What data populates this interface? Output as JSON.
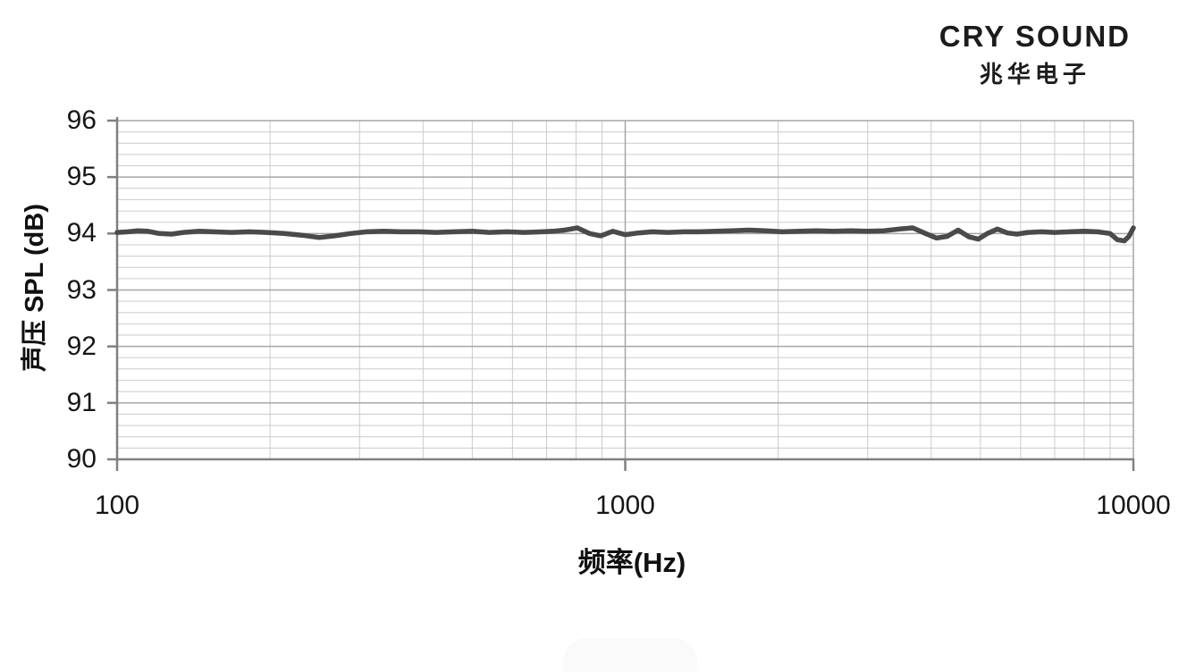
{
  "logo": {
    "brand": "CRY SOUND",
    "brand_cn": "兆华电子"
  },
  "colors": {
    "series": "#4a4a4a",
    "grid_major": "#a6a6a6",
    "grid_minor": "#cbcbcb",
    "axis": "#808080",
    "text": "#161616"
  },
  "chart_data": {
    "type": "line",
    "title": "",
    "xlabel": "频率(Hz)",
    "ylabel": "声压 SPL (dB)",
    "x_scale": "log",
    "xlim": [
      100,
      10000
    ],
    "ylim": [
      90,
      96
    ],
    "x_ticks": [
      100,
      1000,
      10000
    ],
    "y_ticks": [
      90,
      91,
      92,
      93,
      94,
      95,
      96
    ],
    "y_minor_step": 0.2,
    "grid": true,
    "legend": "none",
    "series": [
      {
        "name": "SPL",
        "color": "#4a4a4a",
        "points": [
          [
            100,
            94.02
          ],
          [
            105,
            94.03
          ],
          [
            110,
            94.05
          ],
          [
            115,
            94.04
          ],
          [
            121,
            94.0
          ],
          [
            128,
            93.99
          ],
          [
            135,
            94.02
          ],
          [
            145,
            94.04
          ],
          [
            155,
            94.03
          ],
          [
            168,
            94.02
          ],
          [
            182,
            94.03
          ],
          [
            197,
            94.02
          ],
          [
            213,
            94.0
          ],
          [
            231,
            93.97
          ],
          [
            250,
            93.93
          ],
          [
            268,
            93.96
          ],
          [
            288,
            94.0
          ],
          [
            310,
            94.03
          ],
          [
            335,
            94.04
          ],
          [
            362,
            94.03
          ],
          [
            392,
            94.03
          ],
          [
            424,
            94.02
          ],
          [
            460,
            94.03
          ],
          [
            500,
            94.04
          ],
          [
            540,
            94.02
          ],
          [
            585,
            94.03
          ],
          [
            633,
            94.02
          ],
          [
            685,
            94.03
          ],
          [
            720,
            94.04
          ],
          [
            760,
            94.06
          ],
          [
            805,
            94.1
          ],
          [
            850,
            94.0
          ],
          [
            895,
            93.96
          ],
          [
            945,
            94.04
          ],
          [
            1000,
            93.98
          ],
          [
            1060,
            94.01
          ],
          [
            1130,
            94.03
          ],
          [
            1210,
            94.02
          ],
          [
            1300,
            94.03
          ],
          [
            1400,
            94.03
          ],
          [
            1510,
            94.04
          ],
          [
            1620,
            94.05
          ],
          [
            1750,
            94.06
          ],
          [
            1890,
            94.05
          ],
          [
            2040,
            94.03
          ],
          [
            2200,
            94.04
          ],
          [
            2380,
            94.05
          ],
          [
            2570,
            94.04
          ],
          [
            2780,
            94.05
          ],
          [
            3000,
            94.04
          ],
          [
            3230,
            94.05
          ],
          [
            3460,
            94.08
          ],
          [
            3680,
            94.1
          ],
          [
            3900,
            94.0
          ],
          [
            4100,
            93.92
          ],
          [
            4300,
            93.95
          ],
          [
            4520,
            94.06
          ],
          [
            4750,
            93.94
          ],
          [
            4950,
            93.9
          ],
          [
            5160,
            94.0
          ],
          [
            5400,
            94.08
          ],
          [
            5650,
            94.01
          ],
          [
            5900,
            93.99
          ],
          [
            6200,
            94.02
          ],
          [
            6600,
            94.03
          ],
          [
            7000,
            94.02
          ],
          [
            7500,
            94.03
          ],
          [
            8000,
            94.04
          ],
          [
            8500,
            94.03
          ],
          [
            9000,
            94.0
          ],
          [
            9300,
            93.89
          ],
          [
            9600,
            93.87
          ],
          [
            9800,
            93.95
          ],
          [
            10000,
            94.1
          ]
        ]
      }
    ]
  }
}
